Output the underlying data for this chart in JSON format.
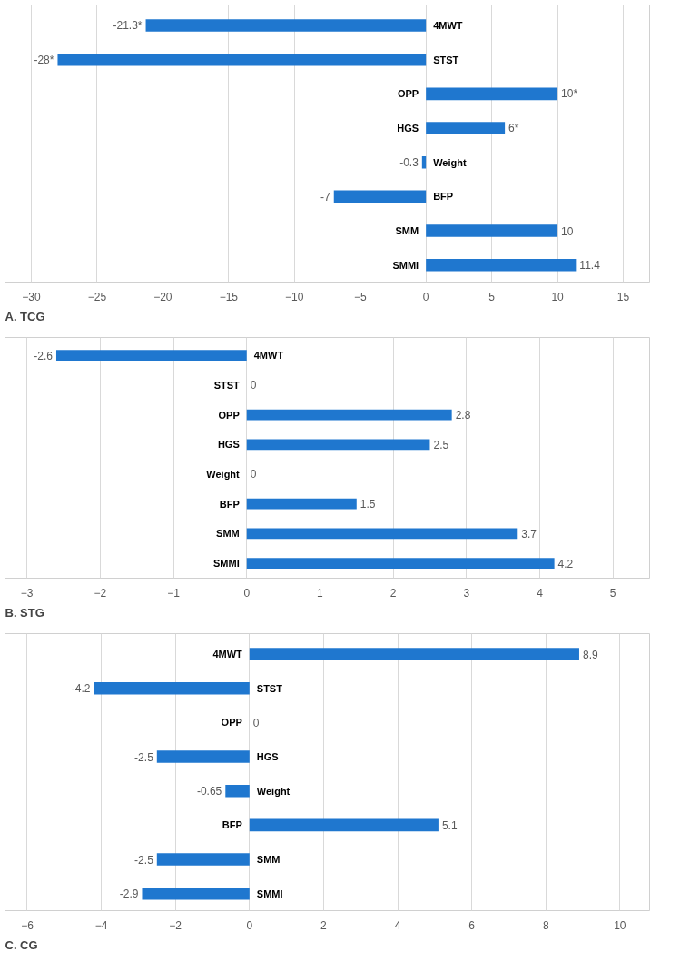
{
  "chart_data": [
    {
      "type": "bar",
      "orientation": "horizontal",
      "title": "A. TCG",
      "categories": [
        "4MWT",
        "STST",
        "OPP",
        "HGS",
        "Weight",
        "BFP",
        "SMM",
        "SMMI"
      ],
      "values": [
        -21.3,
        -28,
        10,
        6,
        -0.3,
        -7,
        10,
        11.4
      ],
      "value_labels": [
        "-21.3*",
        "-28*",
        "10*",
        "6*",
        "-0.3",
        "-7",
        "10",
        "11.4"
      ],
      "color": "#1f77cf",
      "xlim": [
        -32,
        17
      ],
      "xticks": [
        -30,
        -25,
        -20,
        -15,
        -10,
        -5,
        0,
        5,
        10,
        15
      ],
      "grid": "x",
      "tick_labels": "x"
    },
    {
      "type": "bar",
      "orientation": "horizontal",
      "title": "B. STG",
      "categories": [
        "4MWT",
        "STST",
        "OPP",
        "HGS",
        "Weight",
        "BFP",
        "SMM",
        "SMMI"
      ],
      "values": [
        -2.6,
        0,
        2.8,
        2.5,
        0,
        1.5,
        3.7,
        4.2
      ],
      "value_labels": [
        "-2.6",
        "0",
        "2.8",
        "2.5",
        "0",
        "1.5",
        "3.7",
        "4.2"
      ],
      "color": "#1f77cf",
      "xlim": [
        -3.3,
        5.5
      ],
      "xticks": [
        -3,
        -2,
        -1,
        0,
        1,
        2,
        3,
        4,
        5
      ],
      "grid": "x",
      "tick_labels": "x"
    },
    {
      "type": "bar",
      "orientation": "horizontal",
      "title": "C. CG",
      "categories": [
        "4MWT",
        "STST",
        "OPP",
        "HGS",
        "Weight",
        "BFP",
        "SMM",
        "SMMI"
      ],
      "values": [
        8.9,
        -4.2,
        0,
        -2.5,
        -0.65,
        5.1,
        -2.5,
        -2.9
      ],
      "value_labels": [
        "8.9",
        "-4.2",
        "0",
        "-2.5",
        "-0.65",
        "5.1",
        "-2.5",
        "-2.9"
      ],
      "color": "#1f77cf",
      "xlim": [
        -6.6,
        10.8
      ],
      "xticks": [
        -6,
        -4,
        -2,
        0,
        2,
        4,
        6,
        8,
        10
      ],
      "grid": "x",
      "tick_labels": "x"
    }
  ]
}
